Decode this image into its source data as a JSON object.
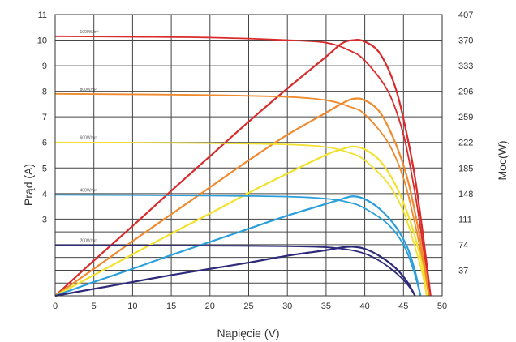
{
  "chart_data": {
    "type": "line",
    "title": "",
    "xlabel": "Napięcie (V)",
    "ylabel_left": "Prąd (A)",
    "ylabel_right": "Moc(W)",
    "x_range": [
      0,
      50
    ],
    "y_left_range": [
      0,
      11
    ],
    "y_right_range": [
      0,
      407
    ],
    "x_ticks": [
      0,
      5,
      10,
      15,
      20,
      25,
      30,
      35,
      40,
      45,
      50
    ],
    "y_left_ticks": [
      3,
      4,
      5,
      6,
      7,
      8,
      9,
      10,
      11
    ],
    "y_right_ticks": [
      37,
      74,
      111,
      148,
      185,
      222,
      259,
      296,
      333,
      370,
      407
    ],
    "grid": true,
    "legend": "labels on curves",
    "series": [
      {
        "name": "1000W/m²",
        "color": "#d92b2b",
        "current_curve": [
          [
            0,
            10.15
          ],
          [
            10,
            10.13
          ],
          [
            20,
            10.1
          ],
          [
            30,
            10.0
          ],
          [
            35,
            9.9
          ],
          [
            38,
            9.6
          ],
          [
            40,
            9.2
          ],
          [
            43,
            8.0
          ],
          [
            45,
            6.3
          ],
          [
            46.5,
            4.0
          ],
          [
            47.5,
            2.0
          ],
          [
            48.5,
            0
          ]
        ],
        "power_curve": [
          [
            0,
            0
          ],
          [
            5,
            51
          ],
          [
            10,
            101
          ],
          [
            15,
            152
          ],
          [
            20,
            202
          ],
          [
            25,
            252
          ],
          [
            30,
            300
          ],
          [
            35,
            346
          ],
          [
            37,
            365
          ],
          [
            38.5,
            370
          ],
          [
            40,
            368
          ],
          [
            42,
            350
          ],
          [
            44,
            300
          ],
          [
            45.5,
            230
          ],
          [
            46.5,
            170
          ],
          [
            47.5,
            90
          ],
          [
            48.5,
            0
          ]
        ]
      },
      {
        "name": "800W/m²",
        "color": "#ef8a2e",
        "current_curve": [
          [
            0,
            7.9
          ],
          [
            10,
            7.88
          ],
          [
            20,
            7.85
          ],
          [
            30,
            7.78
          ],
          [
            35,
            7.65
          ],
          [
            38,
            7.4
          ],
          [
            40,
            7.1
          ],
          [
            43,
            6.0
          ],
          [
            45,
            4.6
          ],
          [
            46.5,
            2.8
          ],
          [
            47.5,
            1.3
          ],
          [
            48.3,
            0
          ]
        ],
        "power_curve": [
          [
            0,
            0
          ],
          [
            5,
            39
          ],
          [
            10,
            79
          ],
          [
            15,
            118
          ],
          [
            20,
            157
          ],
          [
            25,
            196
          ],
          [
            30,
            233
          ],
          [
            35,
            265
          ],
          [
            37,
            278
          ],
          [
            38.5,
            285
          ],
          [
            40,
            283
          ],
          [
            42,
            265
          ],
          [
            44,
            220
          ],
          [
            45.5,
            170
          ],
          [
            46.5,
            120
          ],
          [
            47.5,
            60
          ],
          [
            48.3,
            0
          ]
        ]
      },
      {
        "name": "600W/m²",
        "color": "#f2e12e",
        "current_curve": [
          [
            0,
            6.0
          ],
          [
            10,
            5.99
          ],
          [
            20,
            5.97
          ],
          [
            30,
            5.92
          ],
          [
            35,
            5.82
          ],
          [
            38,
            5.6
          ],
          [
            40,
            5.3
          ],
          [
            43,
            4.4
          ],
          [
            45,
            3.3
          ],
          [
            46.5,
            1.9
          ],
          [
            47.5,
            0.8
          ],
          [
            48.0,
            0
          ]
        ],
        "power_curve": [
          [
            0,
            0
          ],
          [
            5,
            30
          ],
          [
            10,
            60
          ],
          [
            15,
            90
          ],
          [
            20,
            119
          ],
          [
            25,
            149
          ],
          [
            30,
            177
          ],
          [
            35,
            204
          ],
          [
            37,
            212
          ],
          [
            38.5,
            216
          ],
          [
            40,
            212
          ],
          [
            42,
            195
          ],
          [
            44,
            160
          ],
          [
            45.5,
            120
          ],
          [
            46.5,
            85
          ],
          [
            47.5,
            40
          ],
          [
            48.0,
            0
          ]
        ]
      },
      {
        "name": "400W/m²",
        "color": "#2b9fd9",
        "current_curve": [
          [
            0,
            3.95
          ],
          [
            10,
            3.94
          ],
          [
            20,
            3.92
          ],
          [
            30,
            3.88
          ],
          [
            35,
            3.8
          ],
          [
            38,
            3.65
          ],
          [
            40,
            3.42
          ],
          [
            43,
            2.8
          ],
          [
            45,
            2.0
          ],
          [
            46.3,
            1.0
          ],
          [
            47.2,
            0
          ]
        ],
        "power_curve": [
          [
            0,
            0
          ],
          [
            5,
            20
          ],
          [
            10,
            39
          ],
          [
            15,
            59
          ],
          [
            20,
            78
          ],
          [
            25,
            97
          ],
          [
            30,
            116
          ],
          [
            35,
            133
          ],
          [
            37,
            140
          ],
          [
            38.5,
            144
          ],
          [
            40,
            140
          ],
          [
            42,
            125
          ],
          [
            44,
            100
          ],
          [
            45.5,
            70
          ],
          [
            46.5,
            35
          ],
          [
            47.2,
            0
          ]
        ]
      },
      {
        "name": "200W/m²",
        "color": "#2e2a7a",
        "current_curve": [
          [
            0,
            1.98
          ],
          [
            10,
            1.97
          ],
          [
            20,
            1.96
          ],
          [
            30,
            1.94
          ],
          [
            35,
            1.9
          ],
          [
            38,
            1.8
          ],
          [
            40,
            1.65
          ],
          [
            42,
            1.35
          ],
          [
            44,
            0.9
          ],
          [
            45.5,
            0.45
          ],
          [
            46.5,
            0
          ]
        ],
        "power_curve": [
          [
            0,
            0
          ],
          [
            5,
            10
          ],
          [
            10,
            20
          ],
          [
            15,
            30
          ],
          [
            20,
            39
          ],
          [
            25,
            48
          ],
          [
            30,
            58
          ],
          [
            35,
            66
          ],
          [
            37,
            70
          ],
          [
            38.5,
            71
          ],
          [
            40,
            68
          ],
          [
            42,
            57
          ],
          [
            44,
            40
          ],
          [
            45.5,
            20
          ],
          [
            46.5,
            0
          ]
        ]
      }
    ]
  }
}
